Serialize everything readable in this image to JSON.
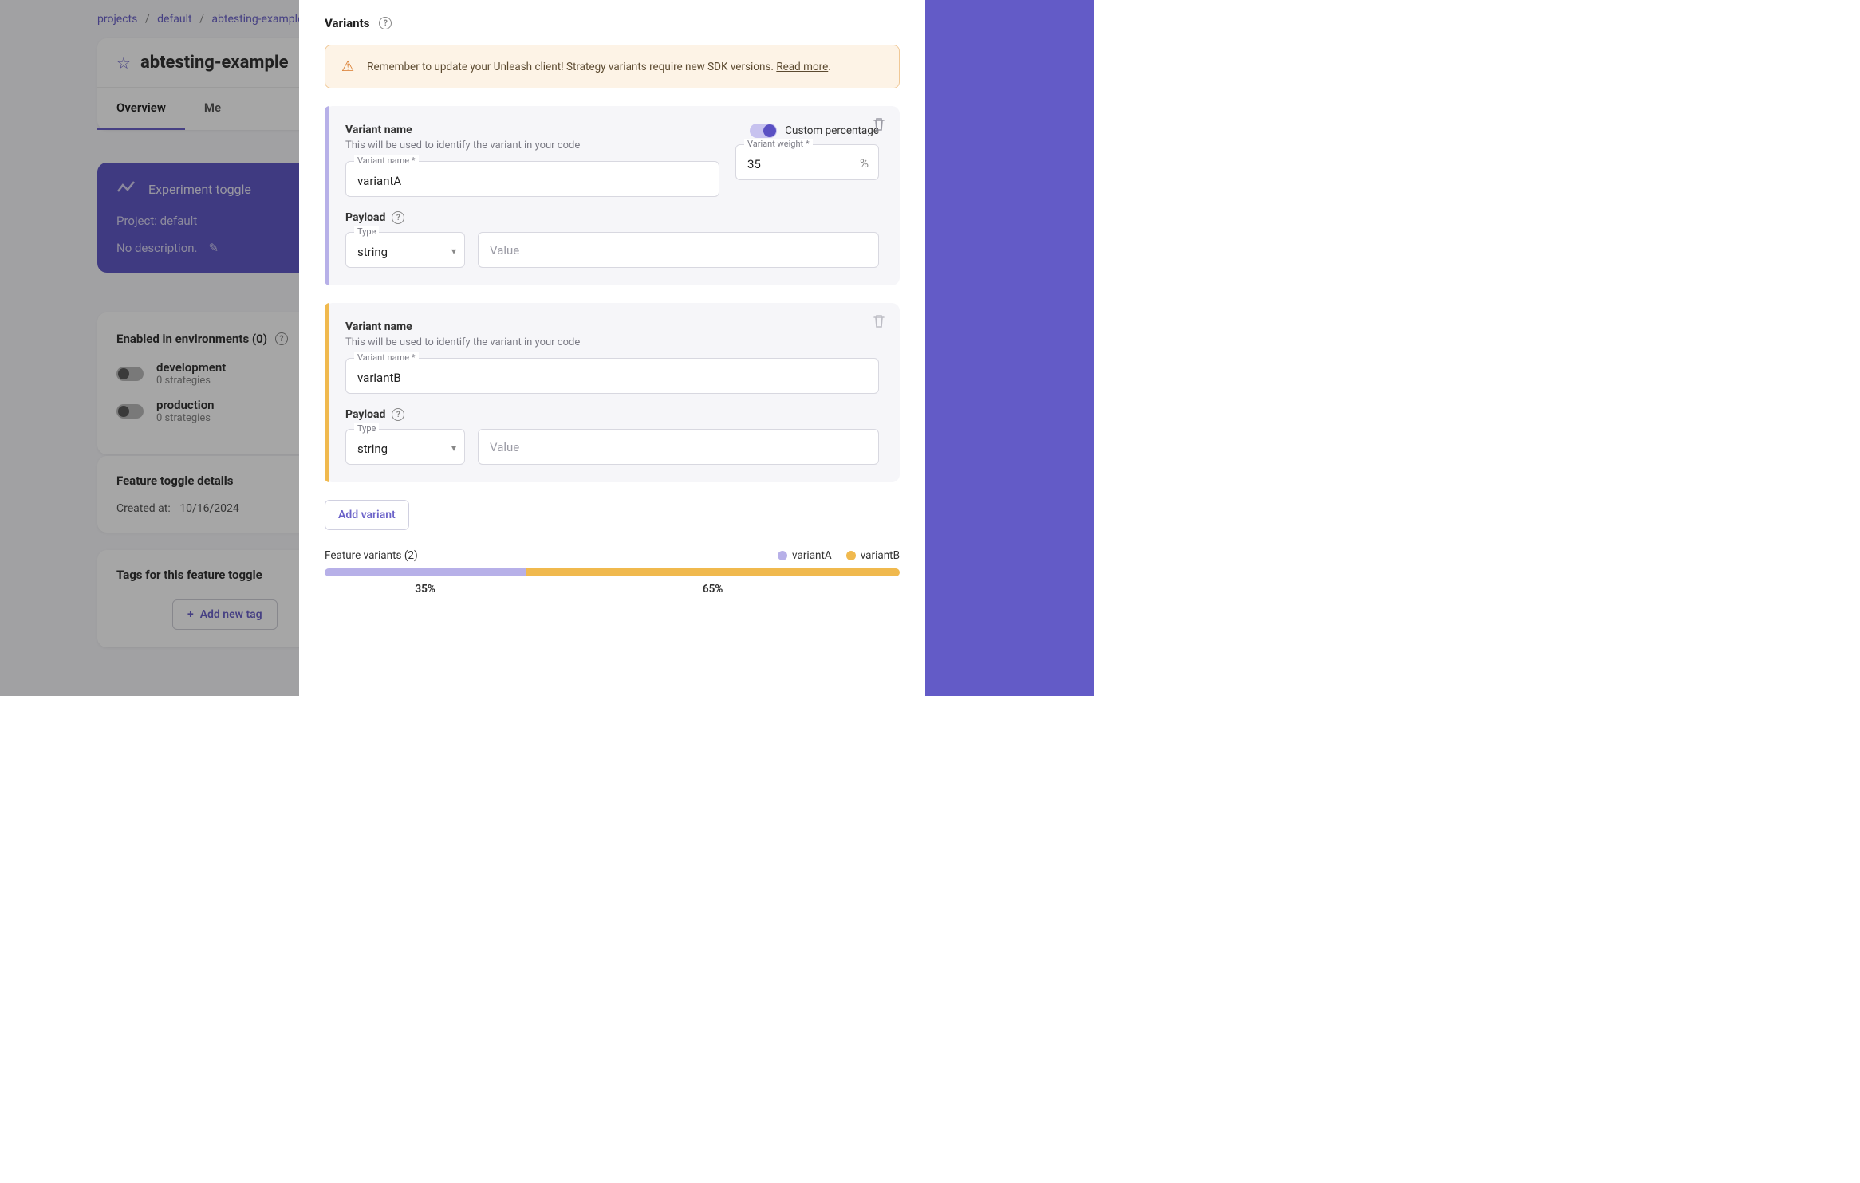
{
  "breadcrumb": {
    "p1": "projects",
    "p2": "default",
    "p3": "abtesting-example"
  },
  "feature": {
    "title": "abtesting-example"
  },
  "tabs": {
    "overview": "Overview",
    "metrics": "Me"
  },
  "purple": {
    "exp": "Experiment toggle",
    "project": "Project: default",
    "nodesc": "No description."
  },
  "env": {
    "title": "Enabled in environments (0)",
    "dev": {
      "name": "development",
      "sub": "0 strategies"
    },
    "prod": {
      "name": "production",
      "sub": "0 strategies"
    }
  },
  "details": {
    "title": "Feature toggle details",
    "created_k": "Created at:",
    "created_v": "10/16/2024"
  },
  "tags": {
    "title": "Tags for this feature toggle",
    "add": "Add new tag"
  },
  "variants": {
    "title": "Variants",
    "alert": {
      "msg": "Remember to update your Unleash client! Strategy variants require new SDK versions. ",
      "link": "Read more"
    },
    "vn_label": "Variant name",
    "vn_sub": "This will be used to identify the variant in your code",
    "name_flabel": "Variant name *",
    "weight_flabel": "Variant weight *",
    "custom_label": "Custom percentage",
    "payload": "Payload",
    "type_flabel": "Type",
    "type_value": "string",
    "value_placeholder": "Value",
    "add_btn": "Add variant",
    "fv_title": "Feature variants (2)",
    "a": {
      "name": "variantA",
      "weight": "35",
      "color": "#b7b0e8",
      "pct_label": "35%"
    },
    "b": {
      "name": "variantB",
      "weight": "65",
      "color": "#f0b94e",
      "pct_label": "65%"
    },
    "bar_a_width": 35,
    "bar_b_width": 65
  }
}
